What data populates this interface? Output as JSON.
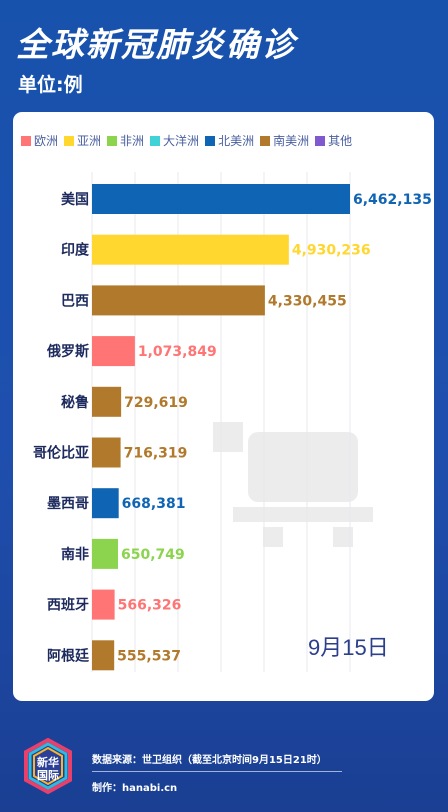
{
  "header": {
    "title": "全球新冠肺炎确诊",
    "unit": "单位:例"
  },
  "colors": {
    "欧洲": "#ff7474",
    "亚洲": "#ffd72e",
    "非洲": "#8cd44e",
    "大洋洲": "#3fd3d8",
    "北美洲": "#0f64b3",
    "南美洲": "#b0792c",
    "其他": "#8159cf"
  },
  "legend": [
    "欧洲",
    "亚洲",
    "非洲",
    "大洋洲",
    "北美洲",
    "南美洲",
    "其他"
  ],
  "chart_data": {
    "type": "bar",
    "orientation": "horizontal",
    "categories": [
      "美国",
      "印度",
      "巴西",
      "俄罗斯",
      "秘鲁",
      "哥伦比亚",
      "墨西哥",
      "南非",
      "西班牙",
      "阿根廷"
    ],
    "values": [
      6462135,
      4930236,
      4330455,
      1073849,
      729619,
      716319,
      668381,
      650749,
      566326,
      555537
    ],
    "value_labels": [
      "6,462,135",
      "4,930,236",
      "4,330,455",
      "1,073,849",
      "729,619",
      "716,319",
      "668,381",
      "650,749",
      "566,326",
      "555,537"
    ],
    "regions": [
      "北美洲",
      "亚洲",
      "南美洲",
      "欧洲",
      "南美洲",
      "南美洲",
      "北美洲",
      "非洲",
      "欧洲",
      "南美洲"
    ],
    "xlim": [
      0,
      6462135
    ],
    "grid": true,
    "legend_position": "top"
  },
  "date": "9月15日",
  "footer": {
    "logo_text": "新华\n国际",
    "source": "数据来源：世卫组织（截至北京时间9月15日21时）",
    "maker": "制作：hanabi.cn"
  }
}
